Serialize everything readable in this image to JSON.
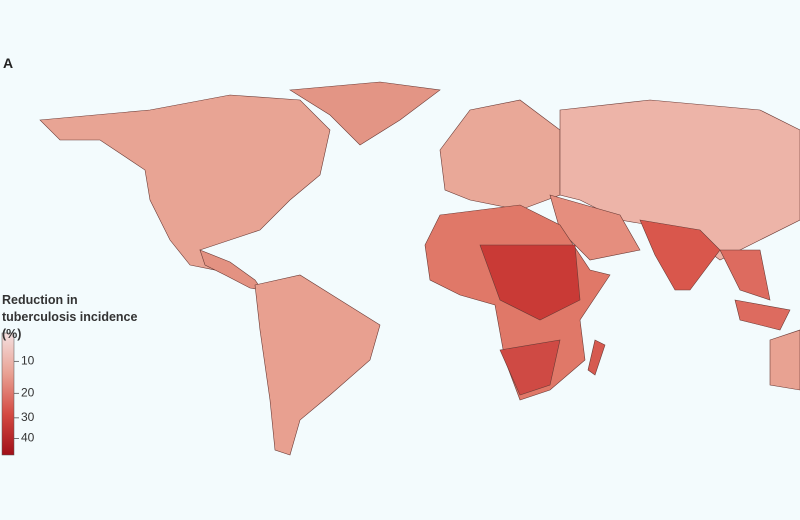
{
  "panel_label": "A",
  "legend": {
    "title": "Reduction in tuberculosis incidence (%)",
    "range": [
      4,
      49
    ],
    "scale": "sqrt",
    "ticks": [
      10,
      20,
      30,
      40
    ],
    "colors": [
      "#f4e0e0",
      "#e9a193",
      "#d44a42",
      "#a10f18"
    ]
  }
}
